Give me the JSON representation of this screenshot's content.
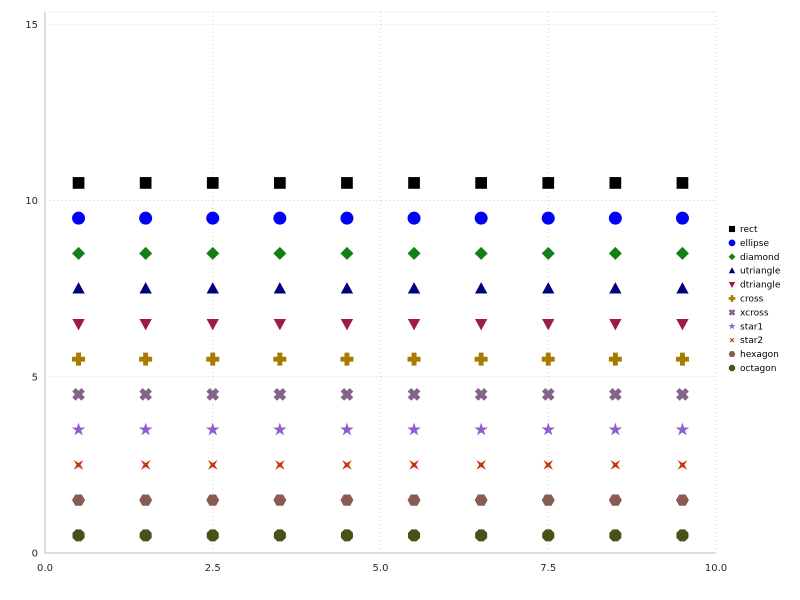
{
  "chart_data": {
    "type": "scatter",
    "title": "",
    "xlabel": "",
    "ylabel": "",
    "x": [
      0.5,
      1.5,
      2.5,
      3.5,
      4.5,
      5.5,
      6.5,
      7.5,
      8.5,
      9.5
    ],
    "series": [
      {
        "name": "rect",
        "marker": "rect",
        "color": "#000000",
        "y": 10.5
      },
      {
        "name": "ellipse",
        "marker": "ellipse",
        "color": "#0000f5",
        "y": 9.5
      },
      {
        "name": "diamond",
        "marker": "diamond",
        "color": "#157f17",
        "y": 8.5
      },
      {
        "name": "utriangle",
        "marker": "utriangle",
        "color": "#000080",
        "y": 7.5
      },
      {
        "name": "dtriangle",
        "marker": "dtriangle",
        "color": "#9e1a4d",
        "y": 6.5
      },
      {
        "name": "cross",
        "marker": "cross",
        "color": "#a67c00",
        "y": 5.5
      },
      {
        "name": "xcross",
        "marker": "xcross",
        "color": "#84648b",
        "y": 4.5
      },
      {
        "name": "star1",
        "marker": "star1",
        "color": "#8b5fd0",
        "y": 3.5
      },
      {
        "name": "star2",
        "marker": "star2",
        "color": "#cc3311",
        "y": 2.5
      },
      {
        "name": "hexagon",
        "marker": "hexagon",
        "color": "#8a5a55",
        "y": 1.5
      },
      {
        "name": "octagon",
        "marker": "octagon",
        "color": "#455318",
        "y": 0.5
      }
    ],
    "xlim": [
      0,
      10
    ],
    "ylim": [
      0,
      15.35
    ],
    "xticks": {
      "values": [
        0,
        2.5,
        5,
        7.5,
        10
      ],
      "labels": [
        "0.0",
        "2.5",
        "5.0",
        "7.5",
        "10.0"
      ]
    },
    "yticks": {
      "values": [
        0,
        5,
        10,
        15
      ],
      "labels": [
        "0",
        "5",
        "10",
        "15"
      ]
    },
    "grid": true,
    "legend_position": "right",
    "legend_entries": [
      "rect",
      "ellipse",
      "diamond",
      "utriangle",
      "dtriangle",
      "cross",
      "xcross",
      "star1",
      "star2",
      "hexagon",
      "octagon"
    ]
  },
  "colors": {
    "background": "#ffffff",
    "grid": "#d2d2d2",
    "axis": "#bdbdbd",
    "frame_dotted": "#d2d2d2",
    "tick_label": "#262626",
    "legend_text": "#000000"
  }
}
